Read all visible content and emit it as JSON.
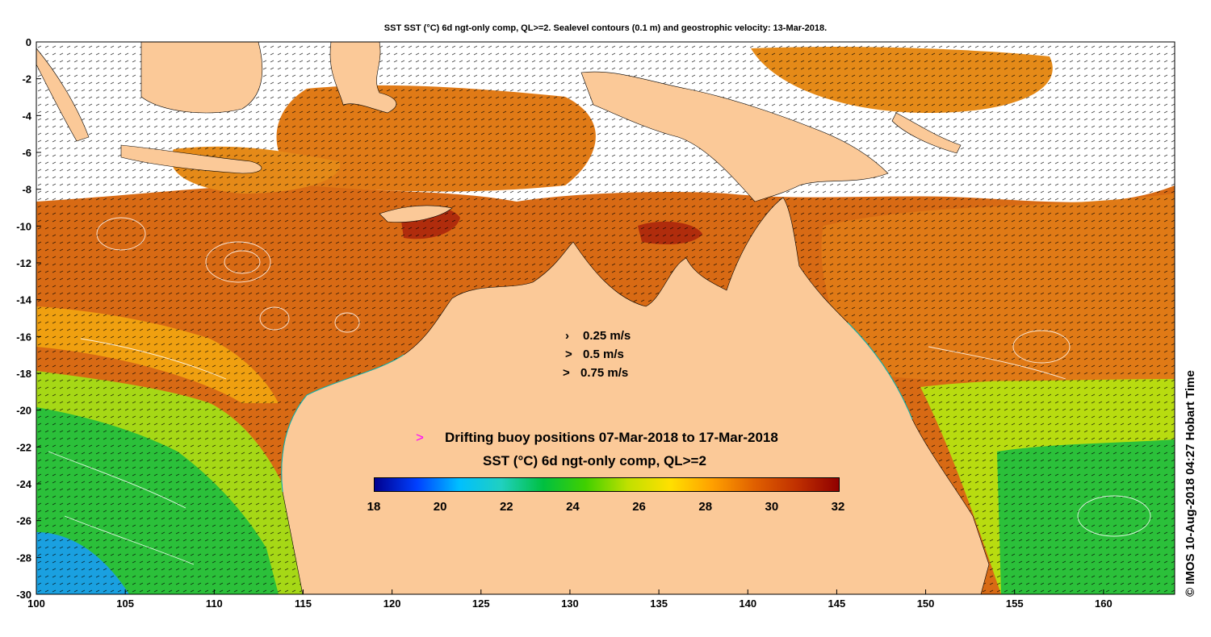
{
  "title": "SST SST (°C) 6d ngt-only comp, QL>=2. Sealevel contours (0.1 m) and geostrophic velocity: 13-Mar-2018.",
  "credit": "© IMOS 10-Aug-2018 04:27 Hobart Time",
  "axes": {
    "x_ticks": [
      "100",
      "105",
      "110",
      "115",
      "120",
      "125",
      "130",
      "135",
      "140",
      "145",
      "150",
      "155",
      "160"
    ],
    "y_ticks": [
      "0",
      "-2",
      "-4",
      "-6",
      "-8",
      "-10",
      "-12",
      "-14",
      "-16",
      "-18",
      "-20",
      "-22",
      "-24",
      "-26",
      "-28",
      "-30"
    ],
    "lon_range": [
      100,
      164
    ],
    "lat_range": [
      -30,
      0
    ]
  },
  "velocity_legend": {
    "items": [
      {
        "arrow": "›",
        "label": "0.25 m/s"
      },
      {
        "arrow": ">",
        "label": "0.5 m/s"
      },
      {
        "arrow": ">",
        "label": "0.75 m/s"
      }
    ]
  },
  "buoy_legend": {
    "arrow": ">",
    "label": "Drifting buoy positions 07-Mar-2018 to 17-Mar-2018",
    "color": "#ff00ff"
  },
  "colorbar": {
    "title": "SST (°C) 6d ngt-only comp, QL>=2",
    "labels": [
      "18",
      "20",
      "22",
      "24",
      "26",
      "28",
      "30",
      "32"
    ],
    "range": [
      18,
      32
    ],
    "colors": [
      "#00008f",
      "#0040ff",
      "#00bfff",
      "#20d0c0",
      "#00c040",
      "#40d000",
      "#c0e000",
      "#ffe000",
      "#ffa000",
      "#e06000",
      "#c03000",
      "#900000"
    ]
  },
  "colors": {
    "land": "#fbc998",
    "no_data": "#ffffff",
    "warm_sea": "#d86a14",
    "hot_sea": "#b02c0c",
    "cool_sea": "#2bc03a",
    "contour": "#ffffff",
    "coastline": "#00b5b5"
  }
}
